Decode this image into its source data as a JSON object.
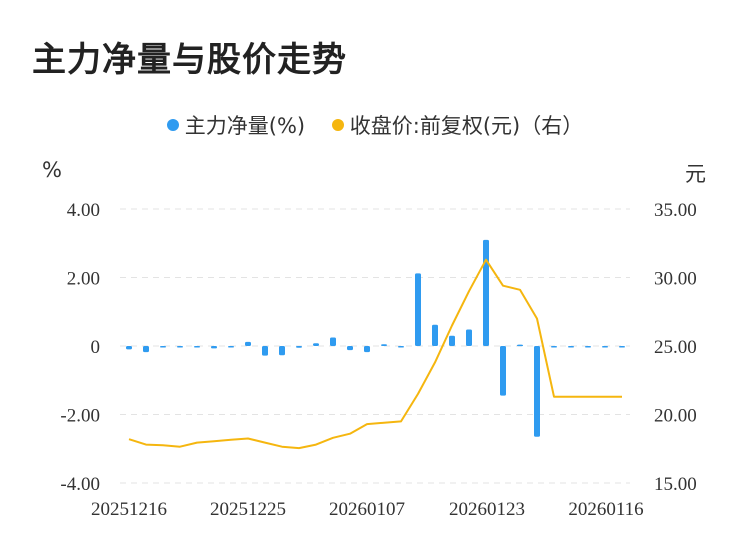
{
  "title": "主力净量与股价走势",
  "legend": {
    "series1": "主力净量(%)",
    "series2": "收盘价:前复权(元)（右）"
  },
  "units": {
    "left": "%",
    "right": "元"
  },
  "colors": {
    "bar": "#2f9bf0",
    "line": "#f5b60f",
    "grid": "#e3e3e3"
  },
  "chart_data": {
    "type": "bar+line",
    "x_tick_labels": [
      "20251216",
      "20251225",
      "20260107",
      "20260123",
      "20260116"
    ],
    "left_axis": {
      "ticks": [
        "4.00",
        "2.00",
        "0",
        "-2.00",
        "-4.00"
      ],
      "range": [
        -4,
        4
      ]
    },
    "right_axis": {
      "ticks": [
        "35.00",
        "30.00",
        "25.00",
        "20.00",
        "15.00"
      ],
      "range": [
        15,
        35
      ]
    },
    "series": [
      {
        "name": "主力净量(%)",
        "type": "bar",
        "values": [
          -0.1,
          -0.18,
          -0.02,
          -0.03,
          -0.03,
          -0.07,
          -0.04,
          0.12,
          -0.28,
          -0.27,
          -0.05,
          0.08,
          0.25,
          -0.12,
          -0.18,
          0.05,
          -0.01,
          2.12,
          0.62,
          0.3,
          0.48,
          3.1,
          -1.45,
          0.04,
          -2.65,
          0,
          0,
          0,
          0,
          0
        ]
      },
      {
        "name": "收盘价:前复权(元)（右）",
        "type": "line",
        "values": [
          18.2,
          17.8,
          17.75,
          17.65,
          17.95,
          18.05,
          18.15,
          18.25,
          17.95,
          17.65,
          17.55,
          17.8,
          18.3,
          18.6,
          19.3,
          19.4,
          19.5,
          21.5,
          23.8,
          26.5,
          29.0,
          31.3,
          29.4,
          29.1,
          27.0,
          21.3,
          21.3,
          21.3,
          21.3,
          21.3
        ]
      }
    ]
  }
}
